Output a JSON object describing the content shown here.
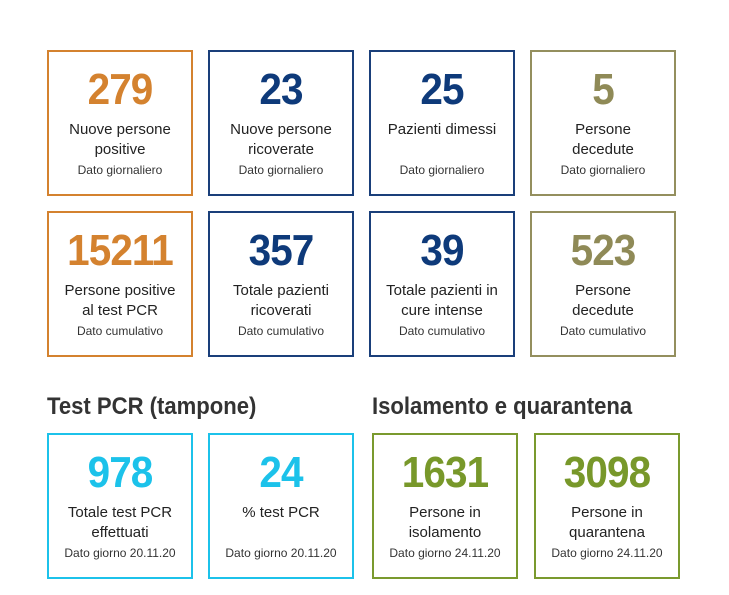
{
  "daily": [
    {
      "value": "279",
      "label_line1": "Nuove persone",
      "label_line2": "positive",
      "sub": "Dato giornaliero"
    },
    {
      "value": "23",
      "label_line1": "Nuove persone",
      "label_line2": "ricoverate",
      "sub": "Dato giornaliero"
    },
    {
      "value": "25",
      "label_line1": "Pazienti dimessi",
      "label_line2": "",
      "sub": "Dato giornaliero"
    },
    {
      "value": "5",
      "label_line1": "Persone",
      "label_line2": "decedute",
      "sub": "Dato giornaliero"
    }
  ],
  "cumulative": [
    {
      "value": "15211",
      "label_line1": "Persone positive",
      "label_line2": "al test PCR",
      "sub": "Dato cumulativo"
    },
    {
      "value": "357",
      "label_line1": "Totale pazienti",
      "label_line2": "ricoverati",
      "sub": "Dato cumulativo"
    },
    {
      "value": "39",
      "label_line1": "Totale pazienti in",
      "label_line2": "cure intense",
      "sub": "Dato cumulativo"
    },
    {
      "value": "523",
      "label_line1": "Persone",
      "label_line2": "decedute",
      "sub": "Dato cumulativo"
    }
  ],
  "sections": {
    "pcr_title": "Test PCR (tampone)",
    "isolation_title": "Isolamento e quarantena"
  },
  "pcr": [
    {
      "value": "978",
      "label_line1": "Totale test PCR",
      "label_line2": "effettuati",
      "sub": "Dato giorno 20.11.20"
    },
    {
      "value": "24",
      "label_line1": "% test PCR",
      "label_line2": "",
      "sub": "Dato giorno 20.11.20"
    }
  ],
  "isolation": [
    {
      "value": "1631",
      "label_line1": "Persone in",
      "label_line2": "isolamento",
      "sub": "Dato giorno 24.11.20"
    },
    {
      "value": "3098",
      "label_line1": "Persone in",
      "label_line2": "quarantena",
      "sub": "Dato giorno 24.11.20"
    }
  ],
  "colors": {
    "orange": "#d4822f",
    "navy": "#0e3a7a",
    "olive": "#8f8a57",
    "cyan": "#1cc2ea",
    "green": "#78982a"
  }
}
